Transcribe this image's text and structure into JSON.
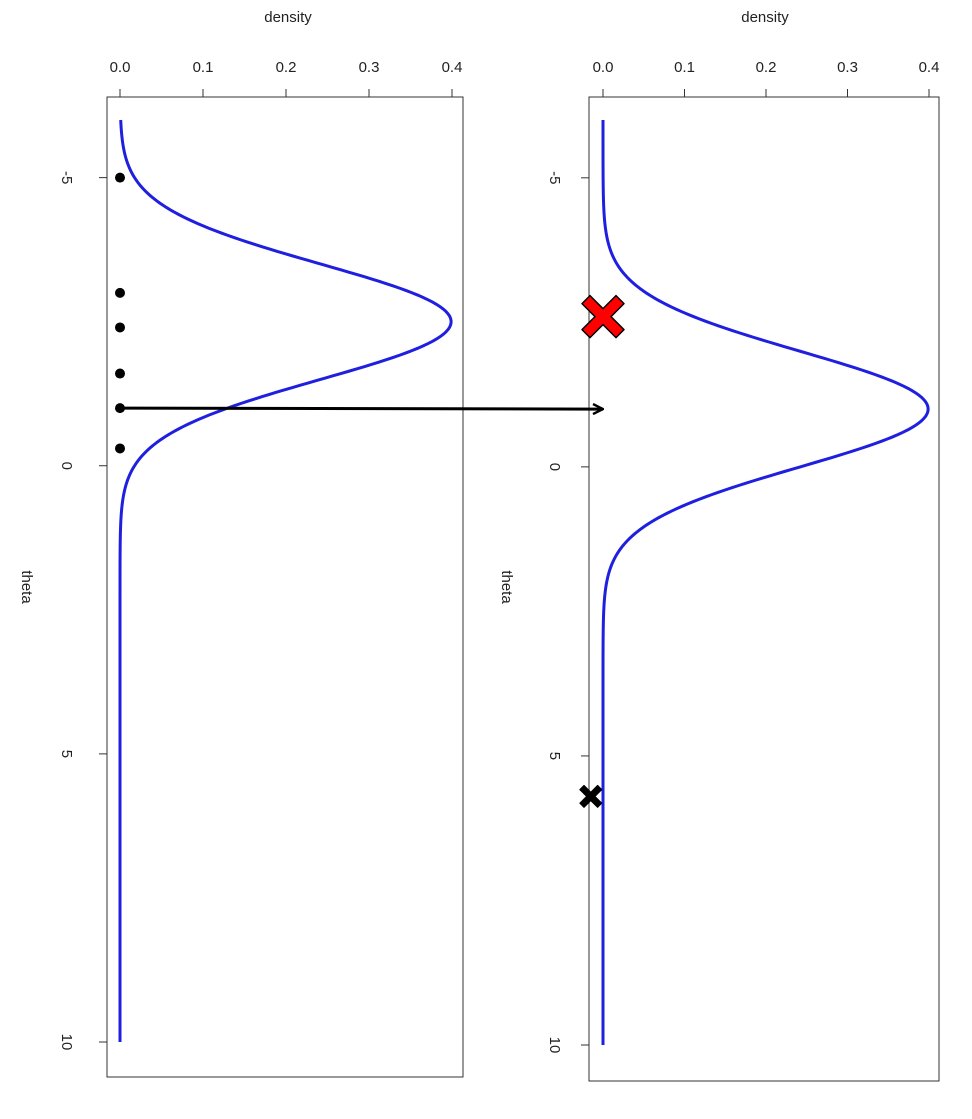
{
  "chart_data": [
    {
      "type": "line",
      "orientation": "vertical",
      "title": "",
      "xlabel": "theta",
      "ylabel": "density",
      "xlim": [
        -6,
        10
      ],
      "ylim": [
        0,
        0.4
      ],
      "x_ticks": [
        -5,
        0,
        5,
        10
      ],
      "x_tick_labels": [
        "-5",
        "0",
        "5",
        "10"
      ],
      "y_ticks": [
        0.0,
        0.1,
        0.2,
        0.3,
        0.4
      ],
      "y_tick_labels": [
        "0.0",
        "0.1",
        "0.2",
        "0.3",
        "0.4"
      ],
      "grid": false,
      "series": [
        {
          "type": "normal-density-curve",
          "mean": -2.5,
          "sd": 1.0,
          "x_range": [
            -6,
            10
          ],
          "color": "#1f1fe0"
        }
      ],
      "points": [
        {
          "theta": -5.0,
          "density": 0
        },
        {
          "theta": -3.0,
          "density": 0
        },
        {
          "theta": -2.4,
          "density": 0
        },
        {
          "theta": -1.6,
          "density": 0
        },
        {
          "theta": -1.0,
          "density": 0
        },
        {
          "theta": -0.3,
          "density": 0
        }
      ],
      "point_color": "#000000"
    },
    {
      "type": "line",
      "orientation": "vertical",
      "title": "",
      "xlabel": "theta",
      "ylabel": "density",
      "xlim": [
        -6,
        10
      ],
      "ylim": [
        0,
        0.4
      ],
      "x_ticks": [
        -5,
        0,
        5,
        10
      ],
      "x_tick_labels": [
        "-5",
        "0",
        "5",
        "10"
      ],
      "y_ticks": [
        0.0,
        0.1,
        0.2,
        0.3,
        0.4
      ],
      "y_tick_labels": [
        "0.0",
        "0.1",
        "0.2",
        "0.3",
        "0.4"
      ],
      "grid": false,
      "series": [
        {
          "type": "normal-density-curve",
          "mean": -1.0,
          "sd": 1.0,
          "x_range": [
            -6,
            10
          ],
          "color": "#1f1fe0"
        }
      ],
      "markers": [
        {
          "shape": "cross",
          "theta": -2.6,
          "density": 0.0,
          "color": "#ff0000",
          "size": "large"
        },
        {
          "shape": "cross",
          "theta": 5.7,
          "density": -0.015,
          "color": "#000000",
          "size": "small"
        }
      ]
    }
  ],
  "arrow": {
    "from": {
      "panel": 0,
      "theta": -1.0
    },
    "to": {
      "panel": 1,
      "theta": -1.0
    },
    "color": "#000000"
  }
}
